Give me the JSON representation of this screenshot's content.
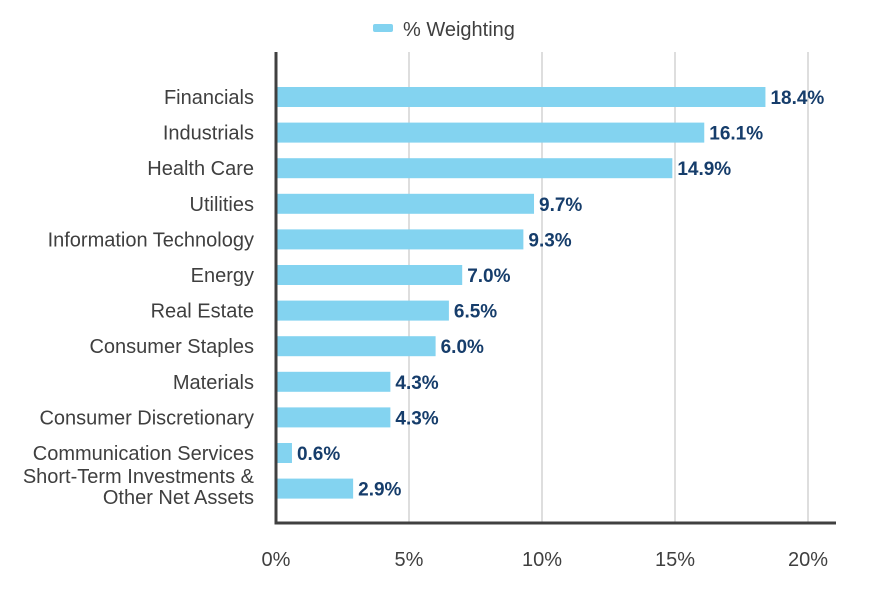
{
  "chart_data": {
    "type": "bar",
    "orientation": "horizontal",
    "categories": [
      "Financials",
      "Industrials",
      "Health Care",
      "Utilities",
      "Information Technology",
      "Energy",
      "Real Estate",
      "Consumer Staples",
      "Materials",
      "Consumer Discretionary",
      "Communication Services",
      "Short-Term Investments & Other Net Assets"
    ],
    "category_lines": [
      [
        "Financials"
      ],
      [
        "Industrials"
      ],
      [
        "Health Care"
      ],
      [
        "Utilities"
      ],
      [
        "Information Technology"
      ],
      [
        "Energy"
      ],
      [
        "Real Estate"
      ],
      [
        "Consumer Staples"
      ],
      [
        "Materials"
      ],
      [
        "Consumer Discretionary"
      ],
      [
        "Communication Services"
      ],
      [
        "Short-Term Investments &",
        "Other Net Assets"
      ]
    ],
    "series": [
      {
        "name": "% Weighting",
        "values": [
          18.4,
          16.1,
          14.9,
          9.7,
          9.3,
          7.0,
          6.5,
          6.0,
          4.3,
          4.3,
          0.6,
          2.9
        ],
        "labels": [
          "18.4%",
          "16.1%",
          "14.9%",
          "9.7%",
          "9.3%",
          "7.0%",
          "6.5%",
          "6.0%",
          "4.3%",
          "4.3%",
          "0.6%",
          "2.9%"
        ]
      }
    ],
    "x_ticks": [
      0,
      5,
      10,
      15,
      20
    ],
    "x_tick_labels": [
      "0%",
      "5%",
      "10%",
      "15%",
      "20%"
    ],
    "xlim": [
      0,
      21
    ],
    "title": "",
    "xlabel": "",
    "ylabel": "",
    "grid": true,
    "legend_position": "top",
    "colors": {
      "bar": "#83d3f0",
      "data_label": "#163d6b",
      "axis": "#404040",
      "grid": "#d4d4d4",
      "text": "#3f3f3f"
    }
  }
}
